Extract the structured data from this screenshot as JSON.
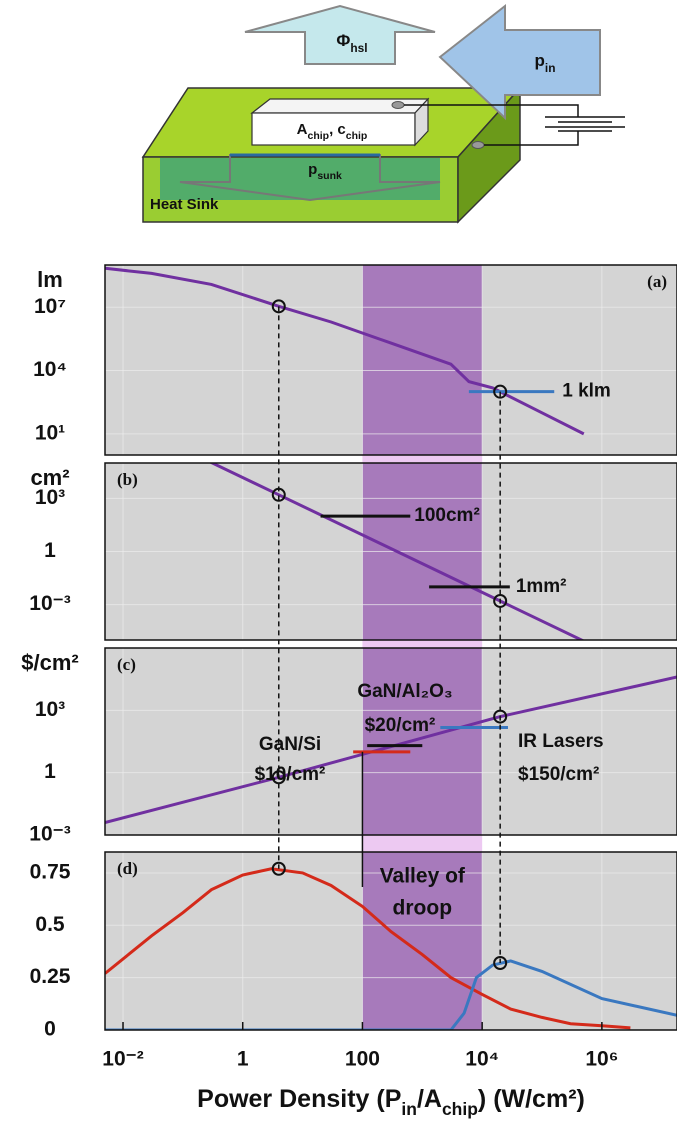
{
  "diagram": {
    "heat_flow": [
      "Φ",
      "hsl"
    ],
    "input_power": [
      "p",
      "in"
    ],
    "chip": [
      "A",
      "chip",
      ", c",
      "chip"
    ],
    "sunk_power": [
      "p",
      "sunk"
    ],
    "heat_sink": "Heat Sink"
  },
  "figure": {
    "xscale": "log",
    "xlim": [
      0.005,
      18000000
    ],
    "xticks": [
      {
        "value": 0.01,
        "label": "10⁻²"
      },
      1,
      100,
      {
        "value": 10000,
        "label": "10⁴"
      },
      {
        "value": 1000000,
        "label": "10⁶"
      }
    ],
    "x_label": [
      "Power Density (P",
      "in",
      "/A",
      "chip",
      ") (W/cm²)"
    ],
    "band": {
      "x": [
        100,
        10000
      ],
      "label": [
        "Valley of",
        "droop"
      ]
    },
    "grid": true
  },
  "chart_data": [
    {
      "type": "line",
      "panel_label": "(a)",
      "y_label": "lm",
      "yscale": "log",
      "ylim": [
        1,
        1000000000
      ],
      "yticks": [
        {
          "value": 10,
          "label": "10¹"
        },
        {
          "value": 10000,
          "label": "10⁴"
        },
        {
          "value": 10000000,
          "label": "10⁷"
        }
      ],
      "series": [
        {
          "color": "#7030a0",
          "x": [
            0.005,
            0.03,
            0.3,
            4,
            30,
            300,
            3000,
            6000,
            15000,
            20000,
            100000,
            500000
          ],
          "values": [
            700000000,
            400000000,
            120000000,
            11000000,
            2000000,
            200000,
            20000,
            3000,
            1500,
            1000,
            100,
            10
          ]
        }
      ],
      "markers": {
        "x": [
          4,
          20000
        ],
        "values": [
          11000000,
          1000
        ]
      },
      "annotations": [
        {
          "value": 1000,
          "value_label": "1 klm",
          "x": [
            6000,
            160000
          ],
          "color": "#3a78c0"
        }
      ]
    },
    {
      "type": "line",
      "panel_label": "(b)",
      "y_label": "cm²",
      "yscale": "log",
      "ylim": [
        1e-05,
        100000
      ],
      "yticks": [
        {
          "value": 0.001,
          "label": "10⁻³"
        },
        1,
        {
          "value": 1000,
          "label": "10³"
        }
      ],
      "series": [
        {
          "color": "#7030a0",
          "x": [
            0.005,
            4,
            20000,
            1000000
          ],
          "values": [
            80000000,
            1600,
            0.0016,
            2.8e-06
          ]
        }
      ],
      "markers": {
        "x": [
          4,
          20000
        ],
        "values": [
          1600,
          0.0016
        ]
      },
      "annotations": [
        {
          "value": 100,
          "value_label": "100cm²",
          "x": [
            20,
            630
          ],
          "color": "#111111"
        },
        {
          "value": 0.01,
          "value_label": "1mm²",
          "x": [
            1300,
            29000
          ],
          "color": "#111111"
        }
      ]
    },
    {
      "type": "line",
      "panel_label": "(c)",
      "y_label": "$/cm²",
      "yscale": "log",
      "ylim": [
        0.001,
        1000000
      ],
      "yticks": [
        {
          "value": 0.001,
          "label": "10⁻³"
        },
        1,
        {
          "value": 1000,
          "label": "10³"
        }
      ],
      "series": [
        {
          "color": "#7030a0",
          "x": [
            0.005,
            4,
            20000,
            18000000
          ],
          "values": [
            0.004,
            0.6,
            500,
            40000
          ]
        }
      ],
      "markers": {
        "x": [
          4,
          20000
        ],
        "values": [
          0.6,
          500
        ]
      },
      "annotations": [
        {
          "name": "GaN/Si",
          "value": 10,
          "value_label": "$10/cm²",
          "x": [
            70,
            630
          ],
          "color": "#d42a1a"
        },
        {
          "name": "GaN/Al₂O₃",
          "value": 20,
          "value_label": "$20/cm²",
          "x": [
            120,
            1000
          ],
          "color": "#111111"
        },
        {
          "name": "IR Lasers",
          "value": 150,
          "value_label": "$150/cm²",
          "x": [
            2000,
            27000
          ],
          "color": "#3a78c0"
        }
      ]
    },
    {
      "type": "line",
      "panel_label": "(d)",
      "yscale": "linear",
      "ylim": [
        0,
        0.85
      ],
      "yticks": [
        0,
        0.25,
        0.5,
        0.75
      ],
      "series": [
        {
          "color": "#d42a1a",
          "x": [
            0.005,
            0.03,
            0.1,
            0.3,
            1,
            3,
            10,
            30,
            100,
            300,
            1000,
            3000,
            10000,
            30000,
            100000,
            300000,
            1000000,
            3000000
          ],
          "values": [
            0.27,
            0.45,
            0.56,
            0.67,
            0.74,
            0.77,
            0.75,
            0.69,
            0.59,
            0.47,
            0.36,
            0.25,
            0.17,
            0.1,
            0.06,
            0.03,
            0.02,
            0.01
          ]
        },
        {
          "color": "#3a78c0",
          "x": [
            0.005,
            3000,
            5000,
            8000,
            15000,
            30000,
            100000,
            1000000,
            18000000
          ],
          "values": [
            0,
            0,
            0.08,
            0.25,
            0.31,
            0.33,
            0.28,
            0.15,
            0.07
          ]
        }
      ],
      "markers": {
        "x": [
          4,
          20000
        ],
        "values": [
          0.77,
          0.32
        ]
      }
    }
  ]
}
